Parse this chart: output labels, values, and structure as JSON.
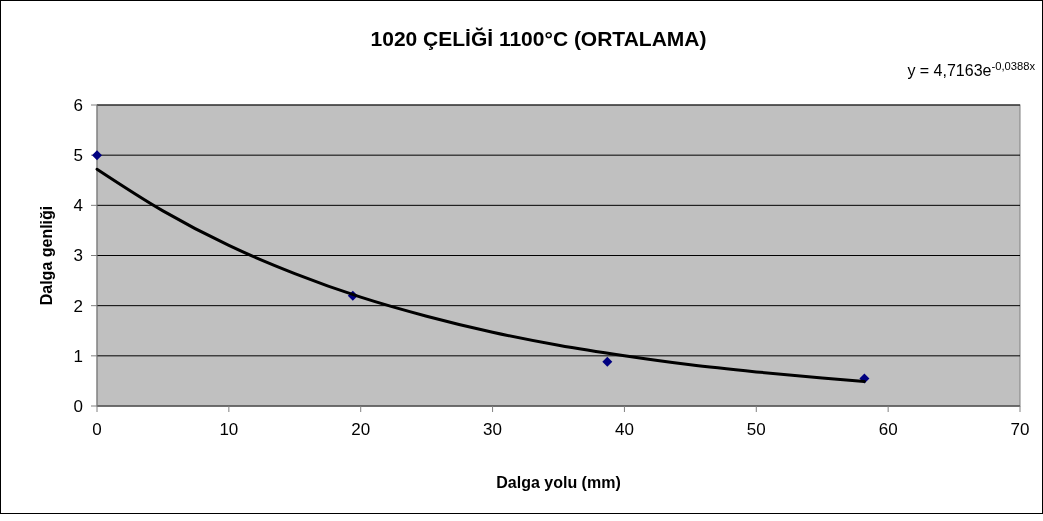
{
  "chart_data": {
    "type": "scatter",
    "title": "1020 ÇELİĞİ 1100°C (ORTALAMA)",
    "xlabel": "Dalga yolu (mm)",
    "ylabel": "Dalga genliği",
    "annotations": [
      "y = 4,7163e$^{-0,0388x}$"
    ],
    "xlim": [
      0,
      70
    ],
    "xticks": [
      0,
      10,
      20,
      30,
      40,
      50,
      60,
      70
    ],
    "ylim": [
      0,
      6
    ],
    "yticks": [
      0,
      1,
      2,
      3,
      4,
      5,
      6
    ],
    "grid": "y",
    "series": [
      {
        "color": "#000080",
        "marker": "diamond",
        "x": [
          0,
          19.4,
          38.7,
          58.2
        ],
        "values": [
          5,
          2.2,
          0.88,
          0.55
        ]
      },
      {
        "type": "line",
        "color": "#000000",
        "line_style": "solid",
        "x": [
          0,
          5,
          10,
          15,
          20,
          25,
          30,
          35,
          40,
          45,
          50,
          55,
          58.2
        ],
        "values": [
          4.72,
          3.89,
          3.2,
          2.64,
          2.17,
          1.79,
          1.47,
          1.21,
          1.0,
          0.82,
          0.68,
          0.56,
          0.49
        ]
      }
    ]
  }
}
